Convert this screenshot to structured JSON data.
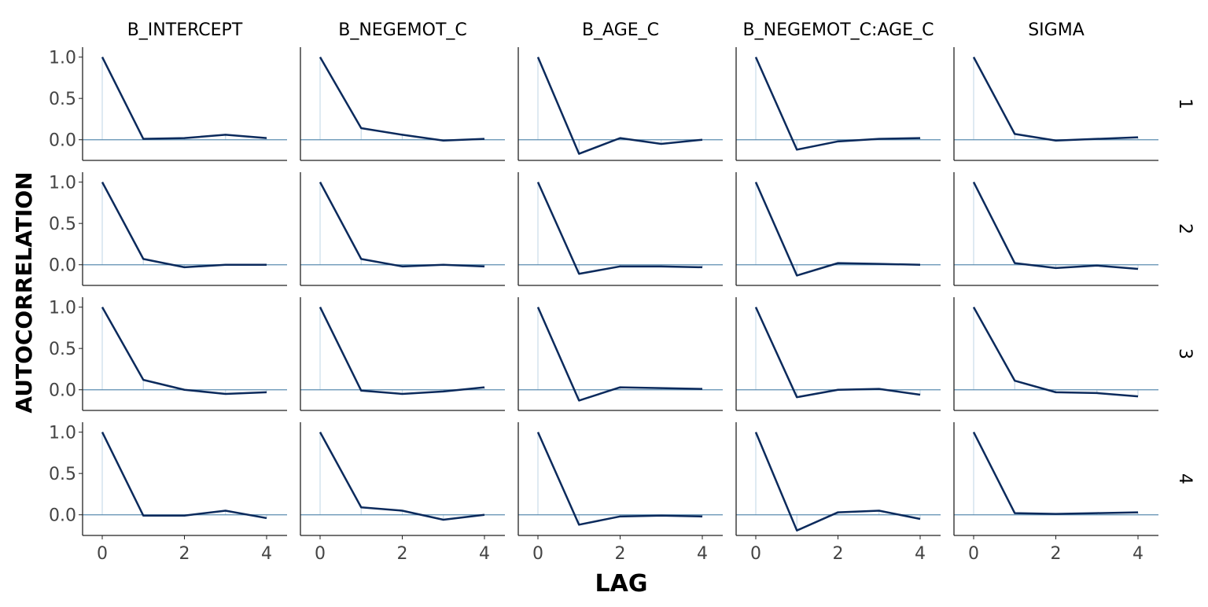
{
  "chart_data": {
    "type": "line",
    "title": "",
    "xlabel": "LAG",
    "ylabel": "AUTOCORRELATION",
    "xlim": [
      0,
      4
    ],
    "ylim": [
      -0.25,
      1.12
    ],
    "x_ticks": [
      0,
      2,
      4
    ],
    "y_ticks": [
      0.0,
      0.5,
      1.0
    ],
    "y_tick_labels": [
      "0.0",
      "0.5",
      "1.0"
    ],
    "x_tick_labels": [
      "0",
      "2",
      "4"
    ],
    "grid": false,
    "parameters": [
      "B_INTERCEPT",
      "B_NEGEMOT_C",
      "B_AGE_C",
      "B_NEGEMOT_C:AGE_C",
      "SIGMA"
    ],
    "chains": [
      "1",
      "2",
      "3",
      "4"
    ],
    "lags": [
      0,
      1,
      2,
      3,
      4
    ],
    "colors": {
      "line": "#0b2a5c",
      "zero_line": "#5b8db0",
      "stem": "#c9dbe8",
      "axis": "#222222"
    },
    "panels": [
      [
        [
          1,
          0.01,
          0.02,
          0.06,
          0.02
        ],
        [
          1,
          0.14,
          0.06,
          -0.01,
          0.01
        ],
        [
          1,
          -0.17,
          0.02,
          -0.05,
          0.0
        ],
        [
          1,
          -0.12,
          -0.02,
          0.01,
          0.02
        ],
        [
          1,
          0.07,
          -0.01,
          0.01,
          0.03
        ]
      ],
      [
        [
          1,
          0.07,
          -0.03,
          0.0,
          0.0
        ],
        [
          1,
          0.07,
          -0.02,
          0.0,
          -0.02
        ],
        [
          1,
          -0.11,
          -0.02,
          -0.02,
          -0.03
        ],
        [
          1,
          -0.13,
          0.02,
          0.01,
          0.0
        ],
        [
          1,
          0.02,
          -0.04,
          -0.01,
          -0.05
        ]
      ],
      [
        [
          1,
          0.12,
          0.0,
          -0.05,
          -0.03
        ],
        [
          1,
          -0.01,
          -0.05,
          -0.02,
          0.03
        ],
        [
          1,
          -0.13,
          0.03,
          0.02,
          0.01
        ],
        [
          1,
          -0.09,
          0.0,
          0.01,
          -0.06
        ],
        [
          1,
          0.11,
          -0.03,
          -0.04,
          -0.08
        ]
      ],
      [
        [
          1,
          -0.01,
          -0.01,
          0.05,
          -0.04
        ],
        [
          1,
          0.09,
          0.05,
          -0.06,
          0.0
        ],
        [
          1,
          -0.12,
          -0.02,
          -0.01,
          -0.02
        ],
        [
          1,
          -0.19,
          0.03,
          0.05,
          -0.05
        ],
        [
          1,
          0.02,
          0.01,
          0.02,
          0.03
        ]
      ]
    ]
  }
}
